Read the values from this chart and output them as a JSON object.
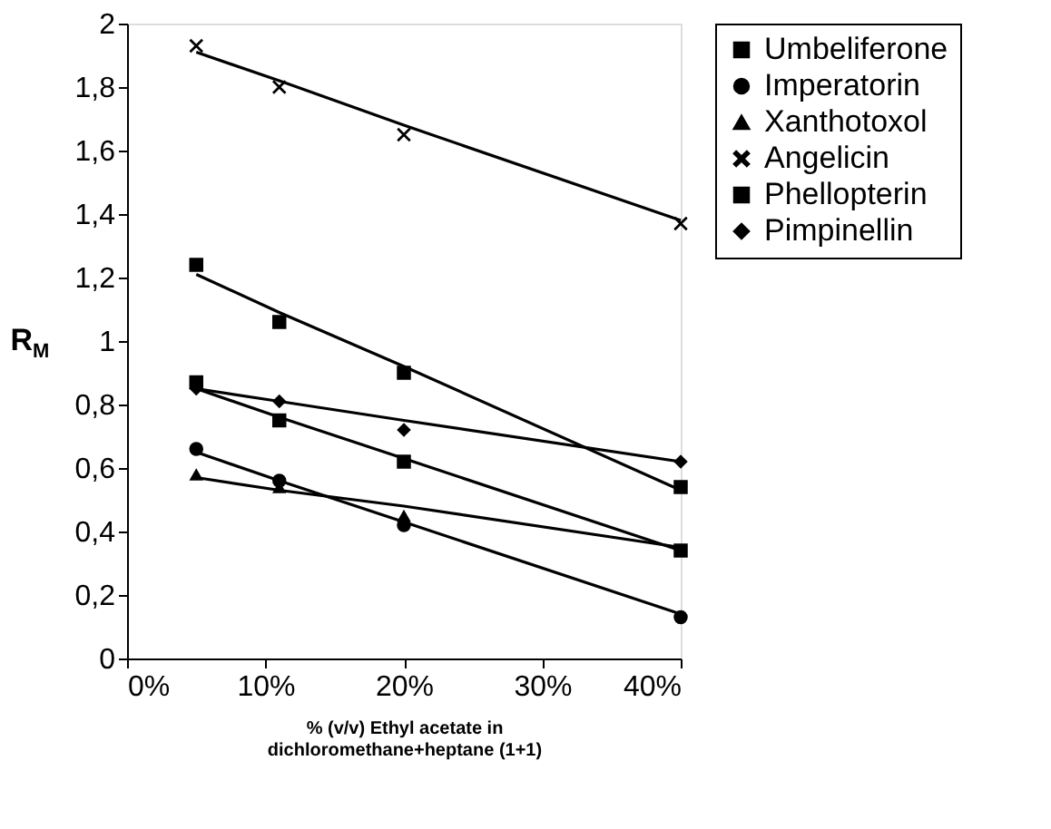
{
  "chart_data": {
    "type": "scatter",
    "xlabel": "% (v/v) Ethyl acetate in\ndichloromethane+heptane (1+1)",
    "ylabel": "R$_{M}$",
    "xlim": [
      0,
      40
    ],
    "ylim": [
      0,
      2
    ],
    "xticks": [
      {
        "value": 0,
        "label": "0%"
      },
      {
        "value": 10,
        "label": "10%"
      },
      {
        "value": 20,
        "label": "20%"
      },
      {
        "value": 30,
        "label": "30%"
      },
      {
        "value": 40,
        "label": "40%"
      }
    ],
    "yticks": [
      0,
      {
        "value": 0.2,
        "label": "0,2"
      },
      {
        "value": 0.4,
        "label": "0,4"
      },
      {
        "value": 0.6,
        "label": "0,6"
      },
      {
        "value": 0.8,
        "label": "0,8"
      },
      1,
      {
        "value": 1.2,
        "label": "1,2"
      },
      {
        "value": 1.4,
        "label": "1,4"
      },
      {
        "value": 1.6,
        "label": "1,6"
      },
      {
        "value": 1.8,
        "label": "1,8"
      },
      2
    ],
    "x": [
      5,
      11,
      20,
      40
    ],
    "grid": false,
    "legend": "right",
    "series": [
      {
        "name": "Umbeliferone",
        "color": "#000000",
        "marker": "square",
        "values": [
          1.24,
          1.06,
          0.9,
          0.54
        ]
      },
      {
        "name": "Imperatorin",
        "color": "#000000",
        "marker": "circle",
        "values": [
          0.66,
          0.56,
          0.42,
          0.13
        ]
      },
      {
        "name": "Xanthotoxol",
        "color": "#000000",
        "marker": "triangle",
        "values": [
          0.58,
          0.54,
          0.45,
          null
        ]
      },
      {
        "name": "Angelicin",
        "color": "#000000",
        "marker": "cross",
        "values": [
          1.93,
          1.8,
          1.65,
          1.37
        ]
      },
      {
        "name": "Phellopterin",
        "color": "#000000",
        "marker": "square",
        "values": [
          0.87,
          0.75,
          0.62,
          0.34
        ]
      },
      {
        "name": "Pimpinellin",
        "color": "#000000",
        "marker": "diamond",
        "values": [
          0.85,
          0.81,
          0.72,
          0.62
        ]
      },
      {
        "type": "line",
        "color": "#000000",
        "values": [
          1.21,
          1.09,
          0.92,
          0.53
        ]
      },
      {
        "type": "line",
        "color": "#000000",
        "values": [
          0.65,
          0.56,
          0.43,
          0.14
        ]
      },
      {
        "type": "line",
        "color": "#000000",
        "values": [
          0.57,
          0.53,
          0.48,
          0.35
        ]
      },
      {
        "type": "line",
        "color": "#000000",
        "values": [
          1.91,
          1.82,
          1.68,
          1.38
        ]
      },
      {
        "type": "line",
        "color": "#000000",
        "values": [
          0.85,
          0.76,
          0.63,
          0.34
        ]
      },
      {
        "type": "line",
        "color": "#000000",
        "values": [
          0.85,
          0.81,
          0.75,
          0.62
        ]
      }
    ]
  }
}
